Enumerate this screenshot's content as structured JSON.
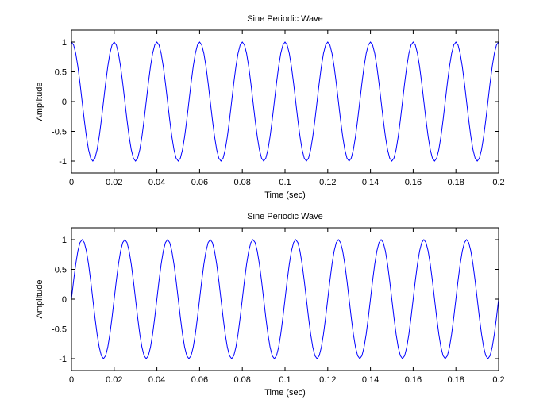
{
  "chart_data": [
    {
      "type": "line",
      "title": "Sine Periodic Wave",
      "xlabel": "Time (sec)",
      "ylabel": "Amplitude",
      "color": "#0000ff",
      "xlim": [
        0,
        0.2
      ],
      "xticks": [
        0,
        0.02,
        0.04,
        0.06,
        0.08,
        0.1,
        0.12,
        0.14,
        0.16,
        0.18,
        0.2
      ],
      "ylim": [
        -1.2,
        1.2
      ],
      "yticks": [
        -1,
        -0.5,
        0,
        0.5,
        1
      ],
      "grid": false,
      "x": [
        0,
        0.001,
        0.002,
        0.003,
        0.004,
        0.005,
        0.006,
        0.007,
        0.008,
        0.009,
        0.01,
        0.011,
        0.012,
        0.013,
        0.014,
        0.015,
        0.016,
        0.017,
        0.018,
        0.019,
        0.02,
        0.021,
        0.022,
        0.023,
        0.024,
        0.025,
        0.026,
        0.027,
        0.028,
        0.029,
        0.03,
        0.031,
        0.032,
        0.033,
        0.034,
        0.035,
        0.036,
        0.037,
        0.038,
        0.039,
        0.04,
        0.041,
        0.042,
        0.043,
        0.044,
        0.045,
        0.046,
        0.047,
        0.048,
        0.049,
        0.05,
        0.051,
        0.052,
        0.053,
        0.054,
        0.055,
        0.056,
        0.057,
        0.058,
        0.059,
        0.06,
        0.061,
        0.062,
        0.063,
        0.064,
        0.065,
        0.066,
        0.067,
        0.068,
        0.069,
        0.07,
        0.071,
        0.072,
        0.073,
        0.074,
        0.075,
        0.076,
        0.077,
        0.078,
        0.079,
        0.08,
        0.081,
        0.082,
        0.083,
        0.084,
        0.085,
        0.086,
        0.087,
        0.088,
        0.089,
        0.09,
        0.091,
        0.092,
        0.093,
        0.094,
        0.095,
        0.096,
        0.097,
        0.098,
        0.099,
        0.1,
        0.101,
        0.102,
        0.103,
        0.104,
        0.105,
        0.106,
        0.107,
        0.108,
        0.109,
        0.11,
        0.111,
        0.112,
        0.113,
        0.114,
        0.115,
        0.116,
        0.117,
        0.118,
        0.119,
        0.12,
        0.121,
        0.122,
        0.123,
        0.124,
        0.125,
        0.126,
        0.127,
        0.128,
        0.129,
        0.13,
        0.131,
        0.132,
        0.133,
        0.134,
        0.135,
        0.136,
        0.137,
        0.138,
        0.139,
        0.14,
        0.141,
        0.142,
        0.143,
        0.144,
        0.145,
        0.146,
        0.147,
        0.148,
        0.149,
        0.15,
        0.151,
        0.152,
        0.153,
        0.154,
        0.155,
        0.156,
        0.157,
        0.158,
        0.159,
        0.16,
        0.161,
        0.162,
        0.163,
        0.164,
        0.165,
        0.166,
        0.167,
        0.168,
        0.169,
        0.17,
        0.171,
        0.172,
        0.173,
        0.174,
        0.175,
        0.176,
        0.177,
        0.178,
        0.179,
        0.18,
        0.181,
        0.182,
        0.183,
        0.184,
        0.185,
        0.186,
        0.187,
        0.188,
        0.189,
        0.19,
        0.191,
        0.192,
        0.193,
        0.194,
        0.195,
        0.196,
        0.197,
        0.198,
        0.199,
        0.2
      ],
      "values": [
        1,
        0.951,
        0.809,
        0.588,
        0.309,
        0,
        -0.309,
        -0.588,
        -0.809,
        -0.951,
        -1,
        -0.951,
        -0.809,
        -0.588,
        -0.309,
        0,
        0.309,
        0.588,
        0.809,
        0.951,
        1,
        0.951,
        0.809,
        0.588,
        0.309,
        0,
        -0.309,
        -0.588,
        -0.809,
        -0.951,
        -1,
        -0.951,
        -0.809,
        -0.588,
        -0.309,
        0,
        0.309,
        0.588,
        0.809,
        0.951,
        1,
        0.951,
        0.809,
        0.588,
        0.309,
        0,
        -0.309,
        -0.588,
        -0.809,
        -0.951,
        -1,
        -0.951,
        -0.809,
        -0.588,
        -0.309,
        0,
        0.309,
        0.588,
        0.809,
        0.951,
        1,
        0.951,
        0.809,
        0.588,
        0.309,
        0,
        -0.309,
        -0.588,
        -0.809,
        -0.951,
        -1,
        -0.951,
        -0.809,
        -0.588,
        -0.309,
        0,
        0.309,
        0.588,
        0.809,
        0.951,
        1,
        0.951,
        0.809,
        0.588,
        0.309,
        0,
        -0.309,
        -0.588,
        -0.809,
        -0.951,
        -1,
        -0.951,
        -0.809,
        -0.588,
        -0.309,
        0,
        0.309,
        0.588,
        0.809,
        0.951,
        1,
        0.951,
        0.809,
        0.588,
        0.309,
        0,
        -0.309,
        -0.588,
        -0.809,
        -0.951,
        -1,
        -0.951,
        -0.809,
        -0.588,
        -0.309,
        0,
        0.309,
        0.588,
        0.809,
        0.951,
        1,
        0.951,
        0.809,
        0.588,
        0.309,
        0,
        -0.309,
        -0.588,
        -0.809,
        -0.951,
        -1,
        -0.951,
        -0.809,
        -0.588,
        -0.309,
        0,
        0.309,
        0.588,
        0.809,
        0.951,
        1,
        0.951,
        0.809,
        0.588,
        0.309,
        0,
        -0.309,
        -0.588,
        -0.809,
        -0.951,
        -1,
        -0.951,
        -0.809,
        -0.588,
        -0.309,
        0,
        0.309,
        0.588,
        0.809,
        0.951,
        1,
        0.951,
        0.809,
        0.588,
        0.309,
        0,
        -0.309,
        -0.588,
        -0.809,
        -0.951,
        -1,
        -0.951,
        -0.809,
        -0.588,
        -0.309,
        0,
        0.309,
        0.588,
        0.809,
        0.951,
        1,
        0.951,
        0.809,
        0.588,
        0.309,
        0,
        -0.309,
        -0.588,
        -0.809,
        -0.951,
        -1,
        -0.951,
        -0.809,
        -0.588,
        -0.309,
        0,
        0.309,
        0.588,
        0.809,
        0.951,
        1
      ]
    },
    {
      "type": "line",
      "title": "Sine Periodic Wave",
      "xlabel": "Time (sec)",
      "ylabel": "Amplitude",
      "color": "#0000ff",
      "xlim": [
        0,
        0.2
      ],
      "xticks": [
        0,
        0.02,
        0.04,
        0.06,
        0.08,
        0.1,
        0.12,
        0.14,
        0.16,
        0.18,
        0.2
      ],
      "ylim": [
        -1.2,
        1.2
      ],
      "yticks": [
        -1,
        -0.5,
        0,
        0.5,
        1
      ],
      "grid": false,
      "x": [
        0,
        0.001,
        0.002,
        0.003,
        0.004,
        0.005,
        0.006,
        0.007,
        0.008,
        0.009,
        0.01,
        0.011,
        0.012,
        0.013,
        0.014,
        0.015,
        0.016,
        0.017,
        0.018,
        0.019,
        0.02,
        0.021,
        0.022,
        0.023,
        0.024,
        0.025,
        0.026,
        0.027,
        0.028,
        0.029,
        0.03,
        0.031,
        0.032,
        0.033,
        0.034,
        0.035,
        0.036,
        0.037,
        0.038,
        0.039,
        0.04,
        0.041,
        0.042,
        0.043,
        0.044,
        0.045,
        0.046,
        0.047,
        0.048,
        0.049,
        0.05,
        0.051,
        0.052,
        0.053,
        0.054,
        0.055,
        0.056,
        0.057,
        0.058,
        0.059,
        0.06,
        0.061,
        0.062,
        0.063,
        0.064,
        0.065,
        0.066,
        0.067,
        0.068,
        0.069,
        0.07,
        0.071,
        0.072,
        0.073,
        0.074,
        0.075,
        0.076,
        0.077,
        0.078,
        0.079,
        0.08,
        0.081,
        0.082,
        0.083,
        0.084,
        0.085,
        0.086,
        0.087,
        0.088,
        0.089,
        0.09,
        0.091,
        0.092,
        0.093,
        0.094,
        0.095,
        0.096,
        0.097,
        0.098,
        0.099,
        0.1,
        0.101,
        0.102,
        0.103,
        0.104,
        0.105,
        0.106,
        0.107,
        0.108,
        0.109,
        0.11,
        0.111,
        0.112,
        0.113,
        0.114,
        0.115,
        0.116,
        0.117,
        0.118,
        0.119,
        0.12,
        0.121,
        0.122,
        0.123,
        0.124,
        0.125,
        0.126,
        0.127,
        0.128,
        0.129,
        0.13,
        0.131,
        0.132,
        0.133,
        0.134,
        0.135,
        0.136,
        0.137,
        0.138,
        0.139,
        0.14,
        0.141,
        0.142,
        0.143,
        0.144,
        0.145,
        0.146,
        0.147,
        0.148,
        0.149,
        0.15,
        0.151,
        0.152,
        0.153,
        0.154,
        0.155,
        0.156,
        0.157,
        0.158,
        0.159,
        0.16,
        0.161,
        0.162,
        0.163,
        0.164,
        0.165,
        0.166,
        0.167,
        0.168,
        0.169,
        0.17,
        0.171,
        0.172,
        0.173,
        0.174,
        0.175,
        0.176,
        0.177,
        0.178,
        0.179,
        0.18,
        0.181,
        0.182,
        0.183,
        0.184,
        0.185,
        0.186,
        0.187,
        0.188,
        0.189,
        0.19,
        0.191,
        0.192,
        0.193,
        0.194,
        0.195,
        0.196,
        0.197,
        0.198,
        0.199,
        0.2
      ],
      "values": [
        0,
        0.309,
        0.588,
        0.809,
        0.951,
        1,
        0.951,
        0.809,
        0.588,
        0.309,
        0,
        -0.309,
        -0.588,
        -0.809,
        -0.951,
        -1,
        -0.951,
        -0.809,
        -0.588,
        -0.309,
        0,
        0.309,
        0.588,
        0.809,
        0.951,
        1,
        0.951,
        0.809,
        0.588,
        0.309,
        0,
        -0.309,
        -0.588,
        -0.809,
        -0.951,
        -1,
        -0.951,
        -0.809,
        -0.588,
        -0.309,
        0,
        0.309,
        0.588,
        0.809,
        0.951,
        1,
        0.951,
        0.809,
        0.588,
        0.309,
        0,
        -0.309,
        -0.588,
        -0.809,
        -0.951,
        -1,
        -0.951,
        -0.809,
        -0.588,
        -0.309,
        0,
        0.309,
        0.588,
        0.809,
        0.951,
        1,
        0.951,
        0.809,
        0.588,
        0.309,
        0,
        -0.309,
        -0.588,
        -0.809,
        -0.951,
        -1,
        -0.951,
        -0.809,
        -0.588,
        -0.309,
        0,
        0.309,
        0.588,
        0.809,
        0.951,
        1,
        0.951,
        0.809,
        0.588,
        0.309,
        0,
        -0.309,
        -0.588,
        -0.809,
        -0.951,
        -1,
        -0.951,
        -0.809,
        -0.588,
        -0.309,
        0,
        0.309,
        0.588,
        0.809,
        0.951,
        1,
        0.951,
        0.809,
        0.588,
        0.309,
        0,
        -0.309,
        -0.588,
        -0.809,
        -0.951,
        -1,
        -0.951,
        -0.809,
        -0.588,
        -0.309,
        0,
        0.309,
        0.588,
        0.809,
        0.951,
        1,
        0.951,
        0.809,
        0.588,
        0.309,
        0,
        -0.309,
        -0.588,
        -0.809,
        -0.951,
        -1,
        -0.951,
        -0.809,
        -0.588,
        -0.309,
        0,
        0.309,
        0.588,
        0.809,
        0.951,
        1,
        0.951,
        0.809,
        0.588,
        0.309,
        0,
        -0.309,
        -0.588,
        -0.809,
        -0.951,
        -1,
        -0.951,
        -0.809,
        -0.588,
        -0.309,
        0,
        0.309,
        0.588,
        0.809,
        0.951,
        1,
        0.951,
        0.809,
        0.588,
        0.309,
        0,
        -0.309,
        -0.588,
        -0.809,
        -0.951,
        -1,
        -0.951,
        -0.809,
        -0.588,
        -0.309,
        0,
        0.309,
        0.588,
        0.809,
        0.951,
        1,
        0.951,
        0.809,
        0.588,
        0.309,
        0,
        -0.309,
        -0.588,
        -0.809,
        -0.951,
        -1,
        -0.951,
        -0.809,
        -0.588,
        -0.309,
        0
      ]
    }
  ]
}
